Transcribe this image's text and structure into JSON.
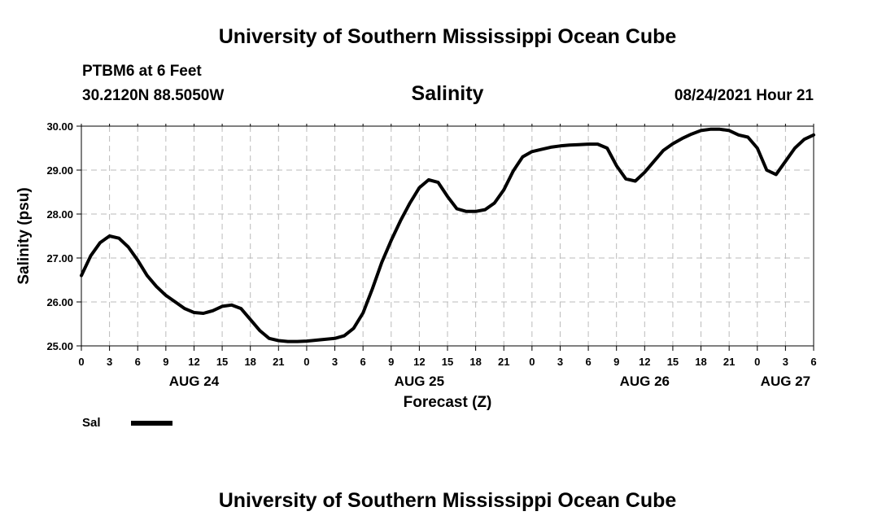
{
  "header": {
    "org_title": "University of Southern Mississippi Ocean Cube",
    "station": "PTBM6 at 6 Feet",
    "coords": "30.2120N  88.5050W",
    "datetime": "08/24/2021 Hour 21"
  },
  "footer": {
    "org_title": "University of Southern Mississippi Ocean Cube"
  },
  "chart_data": {
    "type": "line",
    "title": "Salinity",
    "xlabel": "Forecast (Z)",
    "ylabel": "Salinity (psu)",
    "xlim": [
      0,
      78
    ],
    "ylim": [
      25.0,
      30.0
    ],
    "y_ticks": [
      "25.00",
      "26.00",
      "27.00",
      "28.00",
      "29.00",
      "30.00"
    ],
    "x_ticks": [
      "0",
      "3",
      "6",
      "9",
      "12",
      "15",
      "18",
      "21",
      "0",
      "3",
      "6",
      "9",
      "12",
      "15",
      "18",
      "21",
      "0",
      "3",
      "6",
      "9",
      "12",
      "15",
      "18",
      "21",
      "0",
      "3",
      "6"
    ],
    "day_labels": [
      {
        "label": "AUG 24",
        "hour": 12
      },
      {
        "label": "AUG 25",
        "hour": 36
      },
      {
        "label": "AUG 26",
        "hour": 60
      },
      {
        "label": "AUG 27",
        "hour": 75
      }
    ],
    "grid": true,
    "legend": "bottom-left",
    "series": [
      {
        "name": "Sal",
        "color": "#000000",
        "x": [
          0,
          1,
          2,
          3,
          4,
          5,
          6,
          7,
          8,
          9,
          10,
          11,
          12,
          13,
          14,
          15,
          16,
          17,
          18,
          19,
          20,
          21,
          22,
          23,
          24,
          25,
          26,
          27,
          28,
          29,
          30,
          31,
          32,
          33,
          34,
          35,
          36,
          37,
          38,
          39,
          40,
          41,
          42,
          43,
          44,
          45,
          46,
          47,
          48,
          49,
          50,
          51,
          52,
          53,
          54,
          55,
          56,
          57,
          58,
          59,
          60,
          61,
          62,
          63,
          64,
          65,
          66,
          67,
          68,
          69,
          70,
          71,
          72,
          73,
          74,
          75,
          76,
          77,
          78
        ],
        "values": [
          26.6,
          27.05,
          27.35,
          27.5,
          27.45,
          27.25,
          26.95,
          26.6,
          26.35,
          26.15,
          26.0,
          25.85,
          25.76,
          25.74,
          25.8,
          25.9,
          25.93,
          25.85,
          25.6,
          25.35,
          25.17,
          25.12,
          25.1,
          25.1,
          25.11,
          25.13,
          25.15,
          25.17,
          25.23,
          25.4,
          25.75,
          26.3,
          26.9,
          27.4,
          27.85,
          28.25,
          28.6,
          28.78,
          28.72,
          28.4,
          28.12,
          28.06,
          28.06,
          28.1,
          28.25,
          28.55,
          28.98,
          29.3,
          29.42,
          29.47,
          29.52,
          29.55,
          29.57,
          29.58,
          29.59,
          29.59,
          29.5,
          29.1,
          28.8,
          28.75,
          28.95,
          29.2,
          29.45,
          29.6,
          29.72,
          29.82,
          29.9,
          29.93,
          29.93,
          29.9,
          29.8,
          29.75,
          29.5,
          29.0,
          28.9,
          29.2,
          29.5,
          29.7,
          29.8
        ]
      }
    ]
  }
}
